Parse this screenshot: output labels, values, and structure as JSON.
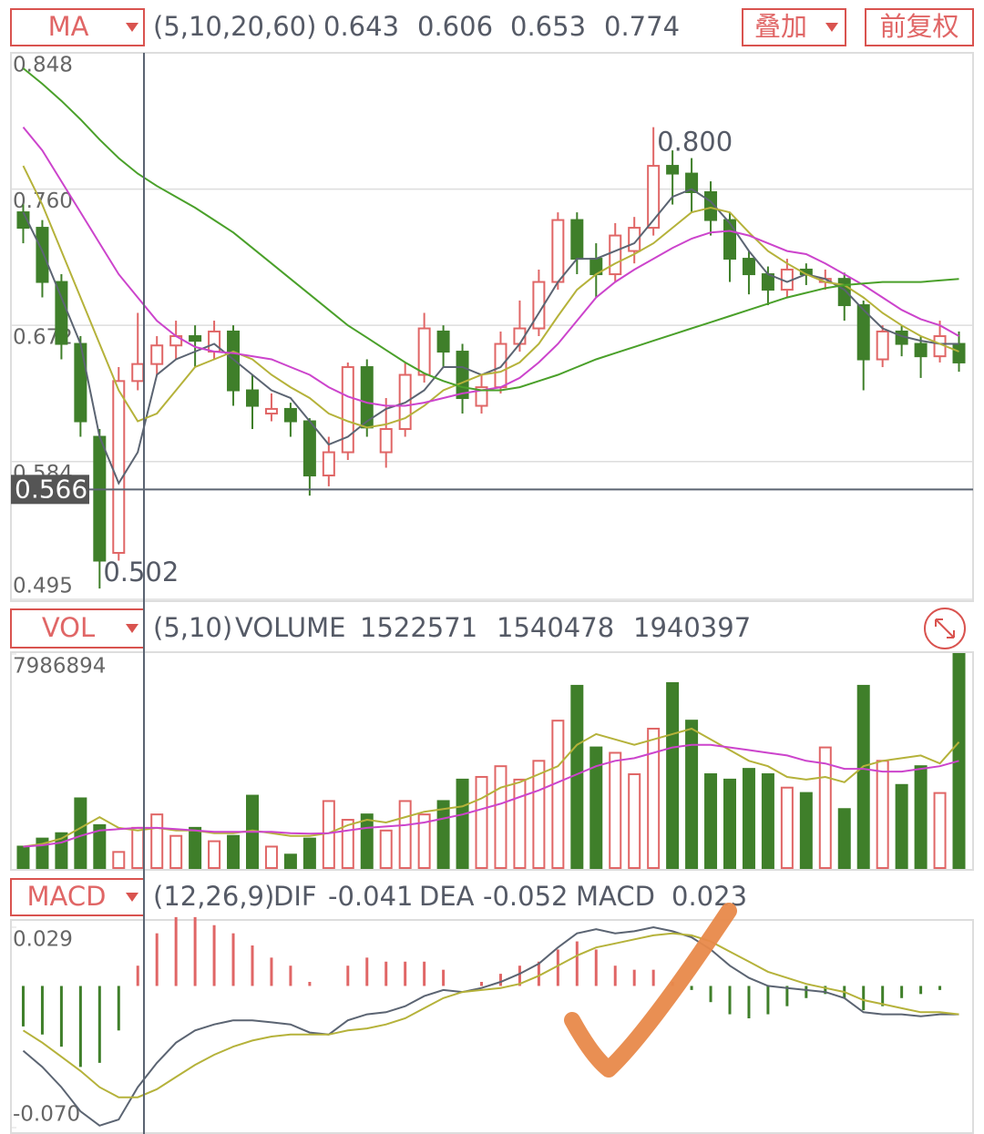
{
  "chart_data": [
    {
      "type": "candlestick",
      "indicator": "MA",
      "params": "(5,10,20,60)",
      "buttons": [
        "叠加",
        "前复权"
      ],
      "up_color": "#e06666",
      "down_color": "#3f7f2a",
      "open": [
        0.745,
        0.735,
        0.7,
        0.66,
        0.6,
        0.525,
        0.636,
        0.647,
        0.659,
        0.665,
        0.655,
        0.668,
        0.63,
        0.615,
        0.618,
        0.61,
        0.575,
        0.59,
        0.645,
        0.59,
        0.605,
        0.64,
        0.668,
        0.655,
        0.62,
        0.632,
        0.66,
        0.67,
        0.7,
        0.74,
        0.715,
        0.705,
        0.72,
        0.735,
        0.775,
        0.77,
        0.758,
        0.74,
        0.715,
        0.705,
        0.695,
        0.708,
        0.7,
        0.702,
        0.685,
        0.65,
        0.668,
        0.66,
        0.652,
        0.66
      ],
      "high": [
        0.75,
        0.74,
        0.705,
        0.665,
        0.605,
        0.645,
        0.68,
        0.665,
        0.675,
        0.672,
        0.675,
        0.672,
        0.64,
        0.628,
        0.622,
        0.612,
        0.6,
        0.648,
        0.65,
        0.625,
        0.648,
        0.68,
        0.672,
        0.66,
        0.64,
        0.668,
        0.688,
        0.708,
        0.745,
        0.745,
        0.725,
        0.738,
        0.742,
        0.8,
        0.785,
        0.78,
        0.765,
        0.745,
        0.72,
        0.71,
        0.715,
        0.712,
        0.708,
        0.706,
        0.688,
        0.672,
        0.672,
        0.665,
        0.675,
        0.668
      ],
      "low": [
        0.725,
        0.69,
        0.65,
        0.6,
        0.502,
        0.52,
        0.63,
        0.64,
        0.65,
        0.645,
        0.65,
        0.62,
        0.605,
        0.61,
        0.6,
        0.562,
        0.568,
        0.585,
        0.6,
        0.58,
        0.6,
        0.635,
        0.645,
        0.615,
        0.615,
        0.628,
        0.655,
        0.665,
        0.695,
        0.705,
        0.69,
        0.7,
        0.712,
        0.73,
        0.75,
        0.745,
        0.73,
        0.7,
        0.692,
        0.685,
        0.69,
        0.698,
        0.695,
        0.675,
        0.63,
        0.645,
        0.652,
        0.638,
        0.648,
        0.642
      ],
      "close": [
        0.735,
        0.7,
        0.66,
        0.61,
        0.52,
        0.636,
        0.647,
        0.659,
        0.665,
        0.662,
        0.668,
        0.63,
        0.62,
        0.618,
        0.61,
        0.575,
        0.59,
        0.645,
        0.606,
        0.605,
        0.64,
        0.67,
        0.655,
        0.625,
        0.632,
        0.66,
        0.67,
        0.7,
        0.74,
        0.715,
        0.705,
        0.73,
        0.735,
        0.775,
        0.77,
        0.758,
        0.74,
        0.715,
        0.705,
        0.695,
        0.708,
        0.705,
        0.702,
        0.685,
        0.65,
        0.668,
        0.66,
        0.652,
        0.665,
        0.648
      ],
      "series": [
        {
          "color": "#5b6472",
          "latest": 0.643,
          "values": [
            0.745,
            0.72,
            0.69,
            0.66,
            0.6,
            0.57,
            0.59,
            0.64,
            0.65,
            0.655,
            0.66,
            0.65,
            0.64,
            0.63,
            0.625,
            0.61,
            0.595,
            0.6,
            0.61,
            0.618,
            0.622,
            0.63,
            0.645,
            0.645,
            0.64,
            0.645,
            0.66,
            0.68,
            0.7,
            0.715,
            0.715,
            0.72,
            0.725,
            0.74,
            0.755,
            0.76,
            0.752,
            0.738,
            0.72,
            0.705,
            0.7,
            0.705,
            0.702,
            0.695,
            0.682,
            0.67,
            0.665,
            0.662,
            0.66,
            0.66
          ]
        },
        {
          "color": "#b5b23a",
          "latest": 0.606,
          "values": [
            0.775,
            0.75,
            0.72,
            0.69,
            0.66,
            0.63,
            0.61,
            0.615,
            0.63,
            0.645,
            0.65,
            0.655,
            0.65,
            0.64,
            0.632,
            0.625,
            0.615,
            0.61,
            0.606,
            0.608,
            0.612,
            0.62,
            0.63,
            0.635,
            0.64,
            0.642,
            0.648,
            0.66,
            0.678,
            0.695,
            0.705,
            0.712,
            0.718,
            0.725,
            0.735,
            0.745,
            0.748,
            0.745,
            0.732,
            0.72,
            0.712,
            0.705,
            0.7,
            0.698,
            0.69,
            0.68,
            0.672,
            0.665,
            0.66,
            0.655
          ]
        },
        {
          "color": "#cc44cc",
          "latest": 0.653,
          "values": [
            0.8,
            0.785,
            0.765,
            0.745,
            0.725,
            0.705,
            0.69,
            0.675,
            0.665,
            0.658,
            0.655,
            0.654,
            0.652,
            0.65,
            0.645,
            0.64,
            0.632,
            0.626,
            0.622,
            0.62,
            0.62,
            0.622,
            0.625,
            0.628,
            0.63,
            0.632,
            0.638,
            0.648,
            0.66,
            0.675,
            0.69,
            0.7,
            0.708,
            0.715,
            0.722,
            0.728,
            0.732,
            0.733,
            0.73,
            0.725,
            0.72,
            0.718,
            0.712,
            0.705,
            0.698,
            0.69,
            0.682,
            0.676,
            0.672,
            0.665
          ]
        },
        {
          "color": "#4aa02a",
          "latest": 0.774,
          "values": [
            0.838,
            0.828,
            0.817,
            0.805,
            0.792,
            0.78,
            0.77,
            0.762,
            0.755,
            0.748,
            0.74,
            0.732,
            0.722,
            0.712,
            0.702,
            0.692,
            0.682,
            0.672,
            0.664,
            0.656,
            0.648,
            0.641,
            0.636,
            0.632,
            0.63,
            0.63,
            0.632,
            0.636,
            0.64,
            0.645,
            0.65,
            0.654,
            0.658,
            0.662,
            0.666,
            0.67,
            0.674,
            0.678,
            0.682,
            0.686,
            0.69,
            0.693,
            0.696,
            0.698,
            0.699,
            0.7,
            0.7,
            0.7,
            0.701,
            0.702
          ]
        }
      ],
      "ylim": [
        0.495,
        0.848
      ],
      "yticks": [
        0.848,
        {
          "value": 0.76,
          "label": "0.760"
        },
        0.672,
        0.584,
        0.495
      ],
      "grid": true,
      "crosshair": 0.566,
      "annotations": [
        {
          "value": 0.8,
          "label": "0.800"
        },
        {
          "value": 0.502,
          "label": "0.502"
        }
      ]
    },
    {
      "type": "bar",
      "indicator": "VOL",
      "params": "(5,10)",
      "label": "VOLUME",
      "latest": 1522571,
      "values": [
        800000,
        1100000,
        1300000,
        2600000,
        1600000,
        600000,
        1500000,
        2000000,
        1200000,
        1500000,
        1000000,
        1200000,
        2700000,
        800000,
        500000,
        1100000,
        2500000,
        1800000,
        2000000,
        1400000,
        2500000,
        2000000,
        2500000,
        3300000,
        3400000,
        3800000,
        3300000,
        4000000,
        5500000,
        6800000,
        4500000,
        4300000,
        3500000,
        5200000,
        6900000,
        5500000,
        3500000,
        3300000,
        3700000,
        3500000,
        3000000,
        2800000,
        4500000,
        2200000,
        6800000,
        4000000,
        3100000,
        3800000,
        2800000,
        7986894
      ],
      "series": [
        {
          "color": "#b5b23a",
          "latest": 1540478,
          "values": [
            800000,
            900000,
            1100000,
            1500000,
            1900000,
            1500000,
            1400000,
            1500000,
            1400000,
            1400000,
            1300000,
            1300000,
            1400000,
            1300000,
            1200000,
            1200000,
            1300000,
            1600000,
            1800000,
            1700000,
            1900000,
            2100000,
            2200000,
            2300000,
            2600000,
            3000000,
            3200000,
            3500000,
            3800000,
            4600000,
            5000000,
            4800000,
            4600000,
            4800000,
            5000000,
            5200000,
            4800000,
            4400000,
            4000000,
            3800000,
            3400000,
            3300000,
            3400000,
            3200000,
            3800000,
            4000000,
            4100000,
            4200000,
            3900000,
            4700000
          ]
        },
        {
          "color": "#cc44cc",
          "latest": 1940397,
          "values": [
            800000,
            850000,
            950000,
            1200000,
            1400000,
            1450000,
            1500000,
            1500000,
            1450000,
            1400000,
            1350000,
            1350000,
            1350000,
            1350000,
            1300000,
            1280000,
            1300000,
            1400000,
            1500000,
            1550000,
            1600000,
            1700000,
            1850000,
            2000000,
            2200000,
            2400000,
            2650000,
            2900000,
            3200000,
            3500000,
            3800000,
            4000000,
            4100000,
            4300000,
            4500000,
            4600000,
            4600000,
            4500000,
            4400000,
            4300000,
            4200000,
            4000000,
            3900000,
            3700000,
            3700000,
            3600000,
            3600000,
            3700000,
            3800000,
            4000000
          ]
        }
      ],
      "ylim": [
        0,
        7986894
      ],
      "yticks": [
        7986894
      ]
    },
    {
      "type": "macd",
      "indicator": "MACD",
      "params": "(12,26,9)",
      "series": [
        {
          "name": "DIF",
          "color": "#5b6472",
          "latest": -0.041,
          "values": [
            -0.032,
            -0.04,
            -0.05,
            -0.062,
            -0.069,
            -0.066,
            -0.05,
            -0.038,
            -0.028,
            -0.022,
            -0.019,
            -0.017,
            -0.017,
            -0.018,
            -0.019,
            -0.023,
            -0.024,
            -0.017,
            -0.014,
            -0.013,
            -0.01,
            -0.005,
            -0.002,
            -0.003,
            -0.001,
            0.002,
            0.006,
            0.011,
            0.019,
            0.026,
            0.028,
            0.026,
            0.027,
            0.029,
            0.027,
            0.024,
            0.018,
            0.01,
            0.004,
            0.0,
            -0.001,
            -0.002,
            -0.003,
            -0.006,
            -0.013,
            -0.014,
            -0.014,
            -0.015,
            -0.014,
            -0.014
          ]
        },
        {
          "name": "DEA",
          "color": "#b5b23a",
          "latest": -0.052,
          "values": [
            -0.022,
            -0.028,
            -0.035,
            -0.042,
            -0.05,
            -0.055,
            -0.055,
            -0.051,
            -0.045,
            -0.039,
            -0.034,
            -0.03,
            -0.027,
            -0.025,
            -0.024,
            -0.024,
            -0.024,
            -0.022,
            -0.021,
            -0.019,
            -0.016,
            -0.011,
            -0.006,
            -0.003,
            -0.002,
            -0.001,
            0.001,
            0.005,
            0.01,
            0.015,
            0.019,
            0.021,
            0.023,
            0.025,
            0.026,
            0.025,
            0.022,
            0.017,
            0.012,
            0.007,
            0.004,
            0.001,
            -0.001,
            -0.003,
            -0.007,
            -0.009,
            -0.011,
            -0.013,
            -0.013,
            -0.014
          ]
        }
      ],
      "histogram": {
        "name": "MACD",
        "color": "#cc44cc",
        "latest": 0.023,
        "up_color": "#e06666",
        "down_color": "#3f7f2a",
        "values": [
          -0.02,
          -0.024,
          -0.03,
          -0.04,
          -0.038,
          -0.022,
          0.01,
          0.026,
          0.034,
          0.034,
          0.03,
          0.026,
          0.02,
          0.014,
          0.01,
          0.002,
          0,
          0.01,
          0.014,
          0.012,
          0.012,
          0.012,
          0.008,
          0,
          0.002,
          0.006,
          0.01,
          0.012,
          0.018,
          0.022,
          0.018,
          0.01,
          0.008,
          0.008,
          0.002,
          -0.002,
          -0.008,
          -0.014,
          -0.016,
          -0.014,
          -0.01,
          -0.006,
          -0.004,
          -0.006,
          -0.012,
          -0.01,
          -0.006,
          -0.004,
          -0.002,
          0
        ]
      },
      "ylim": [
        -0.07,
        0.029
      ],
      "yticks": [
        0.029,
        {
          "value": -0.07,
          "label": "-0.070"
        }
      ]
    }
  ]
}
